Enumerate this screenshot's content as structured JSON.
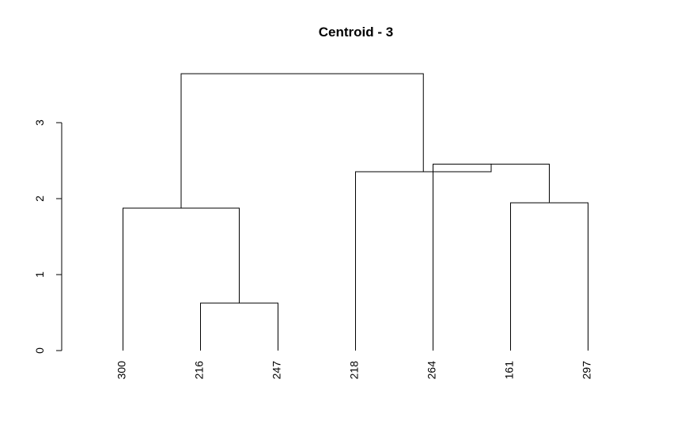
{
  "chart_data": {
    "type": "dendrogram",
    "title": "Centroid - 3",
    "xlabel": "",
    "ylabel": "",
    "ylim": [
      0,
      3
    ],
    "yticks": [
      "0",
      "1",
      "2",
      "3"
    ],
    "leaves": [
      "300",
      "216",
      "247",
      "218",
      "264",
      "161",
      "297"
    ],
    "merges": [
      {
        "id": "m1",
        "left": "216",
        "right": "247",
        "height": 0.63
      },
      {
        "id": "m2",
        "left": "300",
        "right": "m1",
        "height": 1.88
      },
      {
        "id": "m3",
        "left": "161",
        "right": "297",
        "height": 1.95
      },
      {
        "id": "m4",
        "left": "264",
        "right": "m3",
        "height": 2.46
      },
      {
        "id": "m5",
        "left": "218",
        "right": "m4",
        "height": 2.36
      },
      {
        "id": "m6",
        "left": "m2",
        "right": "m5",
        "height": 3.65
      }
    ],
    "grid": false
  }
}
